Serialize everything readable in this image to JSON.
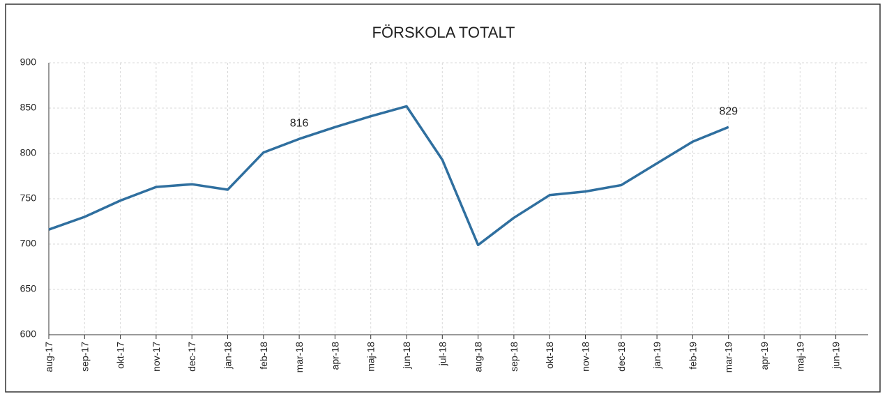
{
  "chart_data": {
    "type": "line",
    "title": "FÖRSKOLA TOTALT",
    "categories": [
      "aug-17",
      "sep-17",
      "okt-17",
      "nov-17",
      "dec-17",
      "jan-18",
      "feb-18",
      "mar-18",
      "apr-18",
      "maj-18",
      "jun-18",
      "jul-18",
      "aug-18",
      "sep-18",
      "okt-18",
      "nov-18",
      "dec-18",
      "jan-19",
      "feb-19",
      "mar-19",
      "apr-19",
      "maj-19",
      "jun-19"
    ],
    "values": [
      716,
      730,
      748,
      763,
      766,
      760,
      801,
      816,
      829,
      841,
      852,
      793,
      699,
      729,
      754,
      758,
      765,
      789,
      813,
      829,
      null,
      null,
      null
    ],
    "value_labels": [
      null,
      null,
      null,
      null,
      null,
      null,
      null,
      816,
      null,
      null,
      null,
      null,
      null,
      null,
      null,
      null,
      null,
      null,
      null,
      829,
      null,
      null,
      null
    ],
    "color": "#2f6f9f",
    "ylim": [
      600,
      900
    ],
    "yticks": [
      600,
      650,
      700,
      750,
      800,
      850,
      900
    ],
    "grid": true
  }
}
